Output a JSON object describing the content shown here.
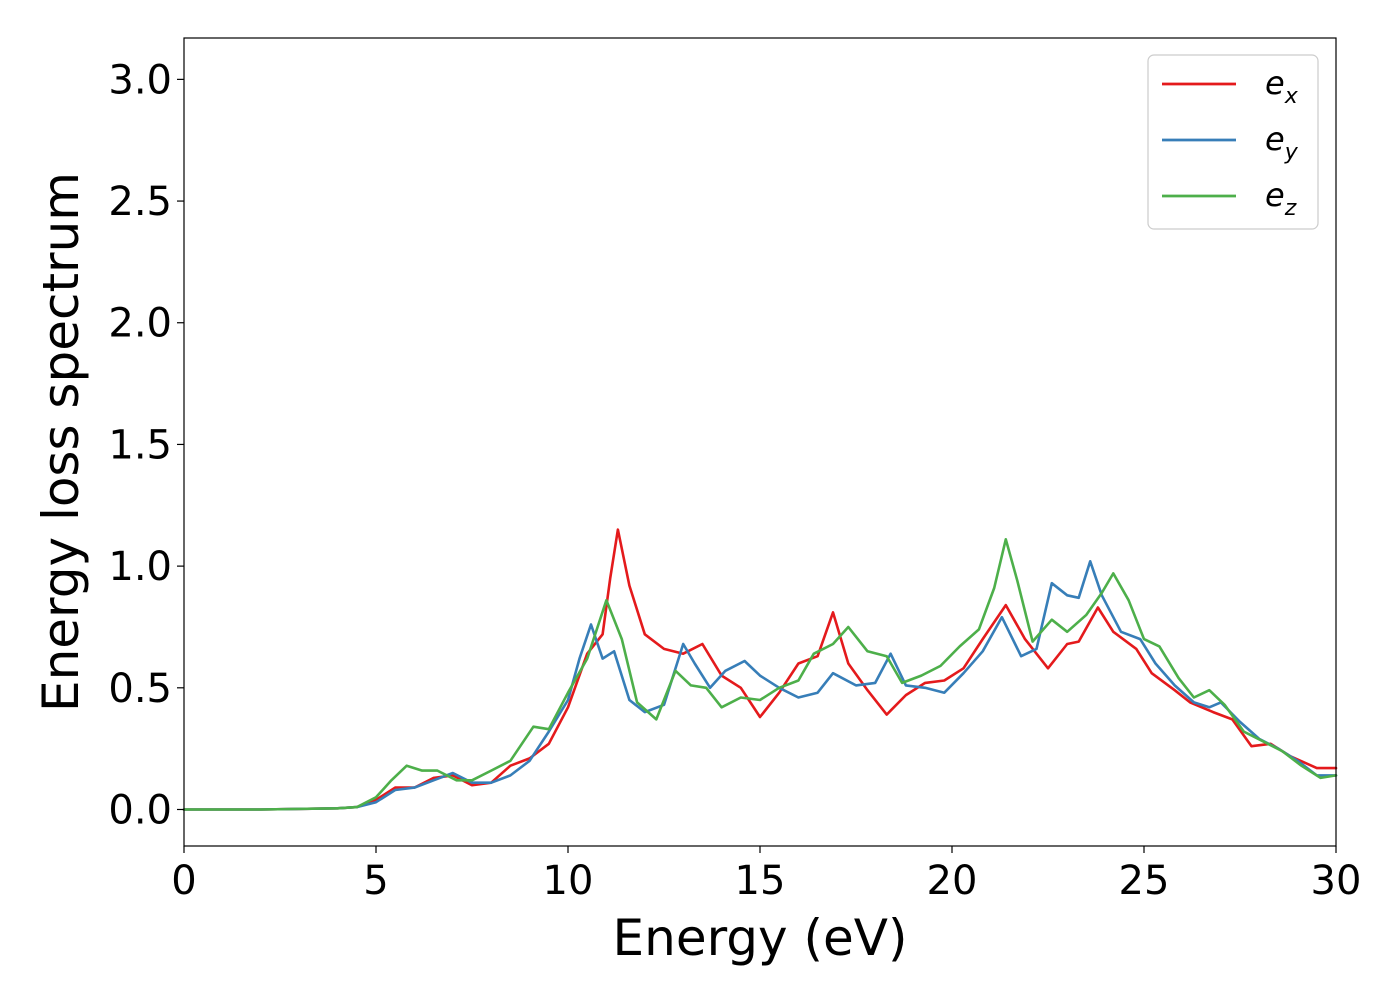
{
  "chart_data": {
    "type": "line",
    "title": "",
    "xlabel": "Energy (eV)",
    "ylabel": "Energy loss spectrum",
    "xlim": [
      0,
      30
    ],
    "ylim": [
      -0.15,
      3.17
    ],
    "xticks": [
      0,
      5,
      10,
      15,
      20,
      25,
      30
    ],
    "xtick_labels": [
      "0",
      "5",
      "10",
      "15",
      "20",
      "25",
      "30"
    ],
    "yticks": [
      0.0,
      0.5,
      1.0,
      1.5,
      2.0,
      2.5,
      3.0
    ],
    "ytick_labels": [
      "0.0",
      "0.5",
      "1.0",
      "1.5",
      "2.0",
      "2.5",
      "3.0"
    ],
    "grid": false,
    "legend_position": "top-right",
    "series": [
      {
        "name": "e",
        "subscript": "x",
        "color": "#e41a1c",
        "points": [
          [
            0,
            0
          ],
          [
            2,
            0
          ],
          [
            4,
            0.005
          ],
          [
            4.5,
            0.01
          ],
          [
            5,
            0.04
          ],
          [
            5.5,
            0.09
          ],
          [
            6,
            0.09
          ],
          [
            6.5,
            0.13
          ],
          [
            7,
            0.14
          ],
          [
            7.5,
            0.1
          ],
          [
            8,
            0.11
          ],
          [
            8.5,
            0.18
          ],
          [
            9,
            0.21
          ],
          [
            9.5,
            0.27
          ],
          [
            10,
            0.42
          ],
          [
            10.5,
            0.64
          ],
          [
            10.9,
            0.72
          ],
          [
            11.1,
            0.95
          ],
          [
            11.3,
            1.15
          ],
          [
            11.6,
            0.92
          ],
          [
            12,
            0.72
          ],
          [
            12.5,
            0.66
          ],
          [
            13,
            0.64
          ],
          [
            13.5,
            0.68
          ],
          [
            14,
            0.55
          ],
          [
            14.5,
            0.5
          ],
          [
            15,
            0.38
          ],
          [
            15.5,
            0.48
          ],
          [
            16,
            0.6
          ],
          [
            16.5,
            0.63
          ],
          [
            16.9,
            0.81
          ],
          [
            17.3,
            0.6
          ],
          [
            17.8,
            0.49
          ],
          [
            18.3,
            0.39
          ],
          [
            18.8,
            0.47
          ],
          [
            19.3,
            0.52
          ],
          [
            19.8,
            0.53
          ],
          [
            20.3,
            0.58
          ],
          [
            20.8,
            0.7
          ],
          [
            21.4,
            0.84
          ],
          [
            21.9,
            0.7
          ],
          [
            22.5,
            0.58
          ],
          [
            23,
            0.68
          ],
          [
            23.3,
            0.69
          ],
          [
            23.8,
            0.83
          ],
          [
            24.2,
            0.73
          ],
          [
            24.8,
            0.66
          ],
          [
            25.2,
            0.56
          ],
          [
            25.8,
            0.49
          ],
          [
            26.2,
            0.44
          ],
          [
            26.8,
            0.4
          ],
          [
            27.3,
            0.37
          ],
          [
            27.8,
            0.26
          ],
          [
            28.3,
            0.27
          ],
          [
            28.8,
            0.22
          ],
          [
            29.5,
            0.17
          ],
          [
            30,
            0.17
          ]
        ]
      },
      {
        "name": "e",
        "subscript": "y",
        "color": "#377eb8",
        "points": [
          [
            0,
            0
          ],
          [
            2,
            0
          ],
          [
            4,
            0.005
          ],
          [
            4.5,
            0.01
          ],
          [
            5,
            0.03
          ],
          [
            5.5,
            0.08
          ],
          [
            6,
            0.09
          ],
          [
            6.5,
            0.12
          ],
          [
            7,
            0.15
          ],
          [
            7.5,
            0.11
          ],
          [
            8,
            0.11
          ],
          [
            8.5,
            0.14
          ],
          [
            9,
            0.2
          ],
          [
            9.5,
            0.32
          ],
          [
            10,
            0.45
          ],
          [
            10.3,
            0.62
          ],
          [
            10.6,
            0.76
          ],
          [
            10.9,
            0.62
          ],
          [
            11.2,
            0.65
          ],
          [
            11.6,
            0.45
          ],
          [
            12,
            0.4
          ],
          [
            12.5,
            0.43
          ],
          [
            13,
            0.68
          ],
          [
            13.3,
            0.6
          ],
          [
            13.7,
            0.5
          ],
          [
            14.1,
            0.57
          ],
          [
            14.6,
            0.61
          ],
          [
            15,
            0.55
          ],
          [
            15.5,
            0.5
          ],
          [
            16,
            0.46
          ],
          [
            16.5,
            0.48
          ],
          [
            16.9,
            0.56
          ],
          [
            17.5,
            0.51
          ],
          [
            18,
            0.52
          ],
          [
            18.4,
            0.64
          ],
          [
            18.8,
            0.51
          ],
          [
            19.3,
            0.5
          ],
          [
            19.8,
            0.48
          ],
          [
            20.3,
            0.56
          ],
          [
            20.8,
            0.65
          ],
          [
            21.3,
            0.79
          ],
          [
            21.8,
            0.63
          ],
          [
            22.2,
            0.66
          ],
          [
            22.6,
            0.93
          ],
          [
            23,
            0.88
          ],
          [
            23.3,
            0.87
          ],
          [
            23.6,
            1.02
          ],
          [
            23.9,
            0.88
          ],
          [
            24.4,
            0.73
          ],
          [
            24.9,
            0.7
          ],
          [
            25.3,
            0.6
          ],
          [
            25.8,
            0.51
          ],
          [
            26.3,
            0.44
          ],
          [
            26.7,
            0.42
          ],
          [
            27,
            0.44
          ],
          [
            27.5,
            0.36
          ],
          [
            28,
            0.29
          ],
          [
            28.5,
            0.25
          ],
          [
            29,
            0.2
          ],
          [
            29.5,
            0.14
          ],
          [
            30,
            0.14
          ]
        ]
      },
      {
        "name": "e",
        "subscript": "z",
        "color": "#4daf4a",
        "points": [
          [
            0,
            0
          ],
          [
            2,
            0
          ],
          [
            4,
            0.005
          ],
          [
            4.5,
            0.01
          ],
          [
            5,
            0.05
          ],
          [
            5.4,
            0.12
          ],
          [
            5.8,
            0.18
          ],
          [
            6.2,
            0.16
          ],
          [
            6.6,
            0.16
          ],
          [
            7.1,
            0.12
          ],
          [
            7.5,
            0.12
          ],
          [
            8,
            0.16
          ],
          [
            8.5,
            0.2
          ],
          [
            9.1,
            0.34
          ],
          [
            9.5,
            0.33
          ],
          [
            10,
            0.48
          ],
          [
            10.5,
            0.62
          ],
          [
            11,
            0.86
          ],
          [
            11.4,
            0.7
          ],
          [
            11.8,
            0.44
          ],
          [
            12.3,
            0.37
          ],
          [
            12.8,
            0.57
          ],
          [
            13.2,
            0.51
          ],
          [
            13.6,
            0.5
          ],
          [
            14,
            0.42
          ],
          [
            14.5,
            0.46
          ],
          [
            15,
            0.45
          ],
          [
            15.5,
            0.5
          ],
          [
            16,
            0.53
          ],
          [
            16.4,
            0.64
          ],
          [
            16.9,
            0.68
          ],
          [
            17.3,
            0.75
          ],
          [
            17.8,
            0.65
          ],
          [
            18.3,
            0.63
          ],
          [
            18.7,
            0.52
          ],
          [
            19.2,
            0.55
          ],
          [
            19.7,
            0.59
          ],
          [
            20.2,
            0.67
          ],
          [
            20.7,
            0.74
          ],
          [
            21.1,
            0.91
          ],
          [
            21.4,
            1.11
          ],
          [
            21.7,
            0.94
          ],
          [
            22.1,
            0.69
          ],
          [
            22.6,
            0.78
          ],
          [
            23,
            0.73
          ],
          [
            23.5,
            0.8
          ],
          [
            23.9,
            0.89
          ],
          [
            24.2,
            0.97
          ],
          [
            24.6,
            0.86
          ],
          [
            25,
            0.7
          ],
          [
            25.4,
            0.67
          ],
          [
            25.9,
            0.54
          ],
          [
            26.3,
            0.46
          ],
          [
            26.7,
            0.49
          ],
          [
            27.1,
            0.43
          ],
          [
            27.6,
            0.32
          ],
          [
            28.1,
            0.28
          ],
          [
            28.6,
            0.24
          ],
          [
            29.1,
            0.18
          ],
          [
            29.6,
            0.13
          ],
          [
            30,
            0.14
          ]
        ]
      }
    ]
  }
}
